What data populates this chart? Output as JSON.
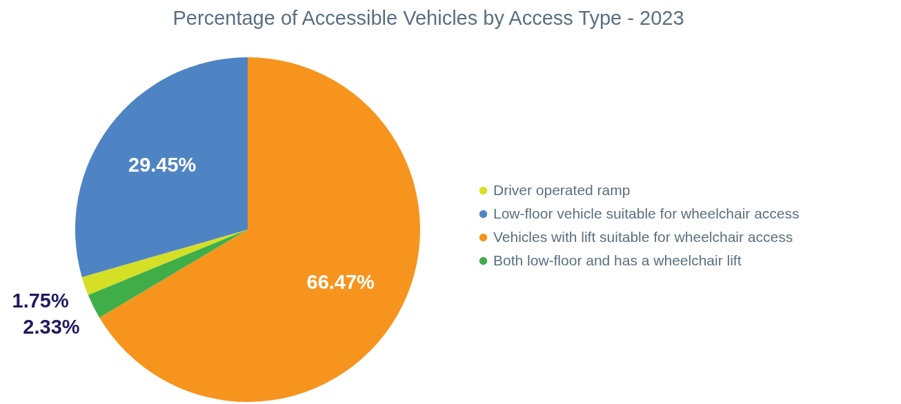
{
  "chart_data": {
    "type": "pie",
    "title": "Percentage of Accessible Vehicles by Access Type - 2023",
    "categories": [
      "Driver operated ramp",
      "Low-floor vehicle suitable for wheelchair access",
      "Vehicles with lift suitable for wheelchair access",
      "Both low-floor and has a wheelchair lift"
    ],
    "values": [
      1.75,
      29.45,
      66.47,
      2.33
    ],
    "colors": [
      "#d4df26",
      "#4f84c4",
      "#f7941e",
      "#3fae49"
    ],
    "value_labels": [
      "1.75%",
      "29.45%",
      "66.47%",
      "2.33%"
    ],
    "legend": "right"
  }
}
